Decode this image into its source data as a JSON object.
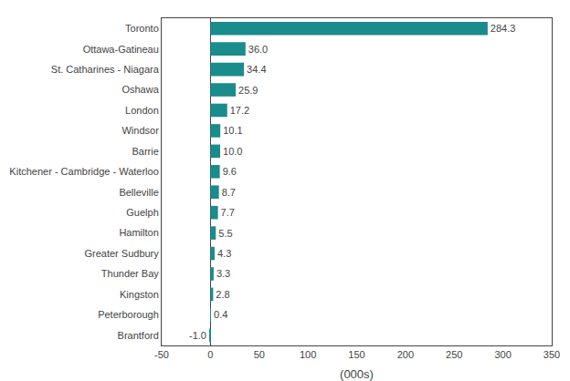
{
  "chart_data": {
    "type": "bar",
    "orientation": "horizontal",
    "categories": [
      "Brantford",
      "Peterborough",
      "Kingston",
      "Thunder Bay",
      "Greater Sudbury",
      "Hamilton",
      "Guelph",
      "Belleville",
      "Kitchener - Cambridge - Waterloo",
      "Barrie",
      "Windsor",
      "London",
      "Oshawa",
      "St. Catharines - Niagara",
      "Ottawa-Gatineau",
      "Toronto"
    ],
    "values": [
      -1.0,
      0.4,
      2.8,
      3.3,
      4.3,
      5.5,
      7.7,
      8.7,
      9.6,
      10.0,
      10.1,
      17.2,
      25.9,
      34.4,
      36.0,
      284.3
    ],
    "value_labels": [
      "-1.0",
      "0.4",
      "2.8",
      "3.3",
      "4.3",
      "5.5",
      "7.7",
      "8.7",
      "9.6",
      "10.0",
      "10.1",
      "17.2",
      "25.9",
      "34.4",
      "36.0",
      "284.3"
    ],
    "color": "#1a8c8c",
    "xlabel": "(000s)",
    "xlim": [
      -50,
      350
    ],
    "xticks": [
      -50,
      0,
      50,
      100,
      150,
      200,
      250,
      300,
      350
    ],
    "data_labels": true,
    "grid": false
  }
}
